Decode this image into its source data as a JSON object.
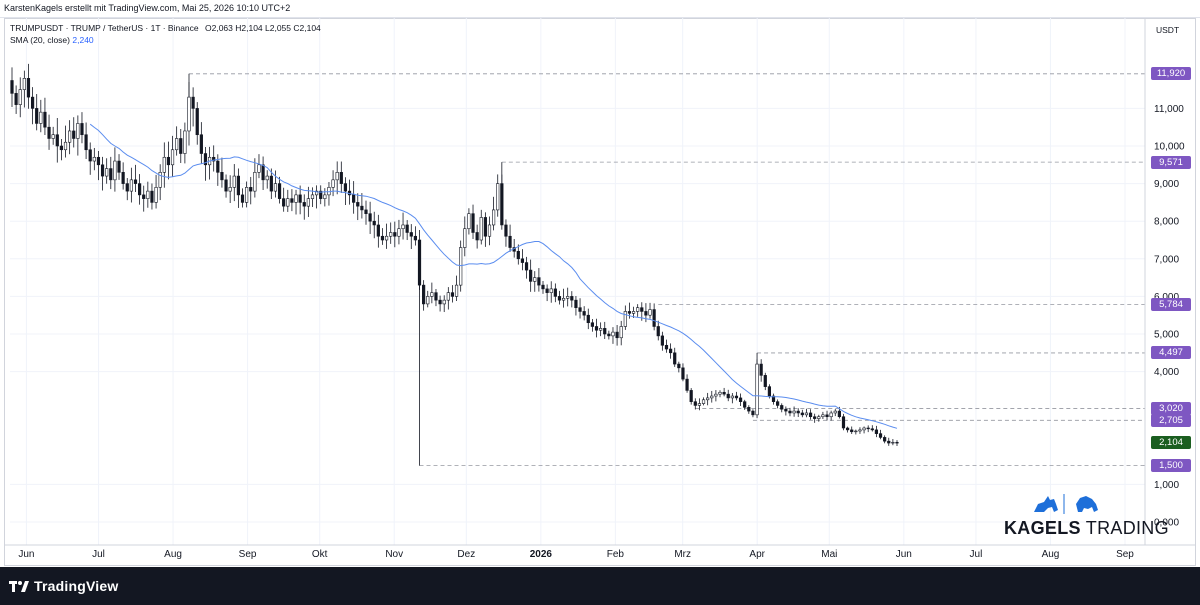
{
  "header": {
    "author_line": "KarstenKagels erstellt mit TradingView.com, Mai 25, 2026 10:10 UTC+2"
  },
  "legend": {
    "symbol_line": "TRUMPUSDT · TRUMP / TetherUS · 1T · Binance",
    "ohlc": "O2,063  H2,104  L2,055  C2,104",
    "sma_label": "SMA (20, close)",
    "sma_value": "2,240"
  },
  "price_axis": {
    "currency": "USDT",
    "ticks": [
      "11,000",
      "10,000",
      "9,000",
      "8,000",
      "7,000",
      "6,000",
      "5,000",
      "4,000",
      "1,000",
      "0,000"
    ]
  },
  "time_axis": {
    "labels": [
      "Jun",
      "Jul",
      "Aug",
      "Sep",
      "Okt",
      "Nov",
      "Dez",
      "2026",
      "Feb",
      "Mrz",
      "Apr",
      "Mai",
      "Jun",
      "Jul",
      "Aug",
      "Sep"
    ]
  },
  "price_levels": [
    {
      "label": "11,920",
      "value": 11.92,
      "kind": "level"
    },
    {
      "label": "9,571",
      "value": 9.571,
      "kind": "level"
    },
    {
      "label": "5,784",
      "value": 5.784,
      "kind": "level"
    },
    {
      "label": "4,497",
      "value": 4.497,
      "kind": "level"
    },
    {
      "label": "3,020",
      "value": 3.02,
      "kind": "level"
    },
    {
      "label": "2,705",
      "value": 2.705,
      "kind": "level"
    },
    {
      "label": "2,104",
      "value": 2.104,
      "kind": "current"
    },
    {
      "label": "1,500",
      "value": 1.5,
      "kind": "level"
    }
  ],
  "colors": {
    "level_badge": "#7e57c2",
    "current_badge": "#1b5e20",
    "sma_line": "#5b8def",
    "candle": "#131722",
    "level_line": "#9598a1"
  },
  "watermark": {
    "text_bold": "KAGELS",
    "text_regular": "TRADING"
  },
  "footer": {
    "brand": "TradingView",
    "icon": "tradingview-logo-icon"
  },
  "chart_data": {
    "type": "candlestick",
    "symbol": "TRUMPUSDT",
    "interval": "1T",
    "x_start": "2025-05-26",
    "x_end": "2026-09-06",
    "closes": [
      11.4,
      11.1,
      11.5,
      11.8,
      11.3,
      11.0,
      10.6,
      10.9,
      10.5,
      10.2,
      10.3,
      10.0,
      9.9,
      10.1,
      10.4,
      10.2,
      10.6,
      10.3,
      9.9,
      9.6,
      9.7,
      9.5,
      9.2,
      9.4,
      9.1,
      9.6,
      9.3,
      9.0,
      8.8,
      9.1,
      9.0,
      8.7,
      8.6,
      8.8,
      8.5,
      8.9,
      9.3,
      9.7,
      9.5,
      9.9,
      10.2,
      9.8,
      10.4,
      11.3,
      11.0,
      10.3,
      9.8,
      9.5,
      9.7,
      9.6,
      9.3,
      9.1,
      8.8,
      8.9,
      9.2,
      8.7,
      8.5,
      8.9,
      8.8,
      9.3,
      9.5,
      9.1,
      9.2,
      8.8,
      9.0,
      8.6,
      8.4,
      8.6,
      8.5,
      8.7,
      8.5,
      8.4,
      8.6,
      8.7,
      8.8,
      8.6,
      8.7,
      8.9,
      9.1,
      9.3,
      9.0,
      8.8,
      8.7,
      8.5,
      8.4,
      8.3,
      8.2,
      8.0,
      7.9,
      7.6,
      7.5,
      7.6,
      7.7,
      7.6,
      7.8,
      7.9,
      7.7,
      7.6,
      7.5,
      6.3,
      5.8,
      6.0,
      6.1,
      5.9,
      5.8,
      5.9,
      6.1,
      6.0,
      6.3,
      7.3,
      7.8,
      8.2,
      7.7,
      7.5,
      8.1,
      7.6,
      7.9,
      8.3,
      9.0,
      7.9,
      7.6,
      7.3,
      7.2,
      7.0,
      6.9,
      6.7,
      6.4,
      6.5,
      6.3,
      6.2,
      6.1,
      6.2,
      6.0,
      5.9,
      5.95,
      6.0,
      5.9,
      5.7,
      5.6,
      5.5,
      5.3,
      5.2,
      5.1,
      5.15,
      5.0,
      4.95,
      5.05,
      4.9,
      5.2,
      5.6,
      5.55,
      5.6,
      5.7,
      5.6,
      5.5,
      5.65,
      5.2,
      4.95,
      4.7,
      4.6,
      4.5,
      4.2,
      4.1,
      3.8,
      3.5,
      3.2,
      3.1,
      3.15,
      3.25,
      3.3,
      3.35,
      3.4,
      3.45,
      3.4,
      3.3,
      3.35,
      3.3,
      3.2,
      3.05,
      2.95,
      2.85,
      4.2,
      3.9,
      3.6,
      3.35,
      3.2,
      3.1,
      3.0,
      2.95,
      2.9,
      2.95,
      2.9,
      2.85,
      2.9,
      2.8,
      2.75,
      2.8,
      2.85,
      2.8,
      2.9,
      2.95,
      2.8,
      2.5,
      2.45,
      2.4,
      2.42,
      2.45,
      2.5,
      2.48,
      2.45,
      2.35,
      2.25,
      2.15,
      2.1,
      2.12,
      2.104
    ],
    "sma_period": 20,
    "y_axis": "USDT",
    "price_scale_values": [
      {
        "label": "11,000",
        "value": 11.0
      },
      {
        "label": "10,000",
        "value": 10.0
      },
      {
        "label": "9,000",
        "value": 9.0
      },
      {
        "label": "8,000",
        "value": 8.0
      },
      {
        "label": "7,000",
        "value": 7.0
      },
      {
        "label": "6,000",
        "value": 6.0
      },
      {
        "label": "5,000",
        "value": 5.0
      },
      {
        "label": "4,000",
        "value": 4.0
      },
      {
        "label": "1,000",
        "value": 1.0
      },
      {
        "label": "0,000",
        "value": 0.0
      }
    ],
    "hlines": [
      11.92,
      9.571,
      5.784,
      4.497,
      3.02,
      2.705,
      1.5
    ],
    "last_price": 2.104
  }
}
